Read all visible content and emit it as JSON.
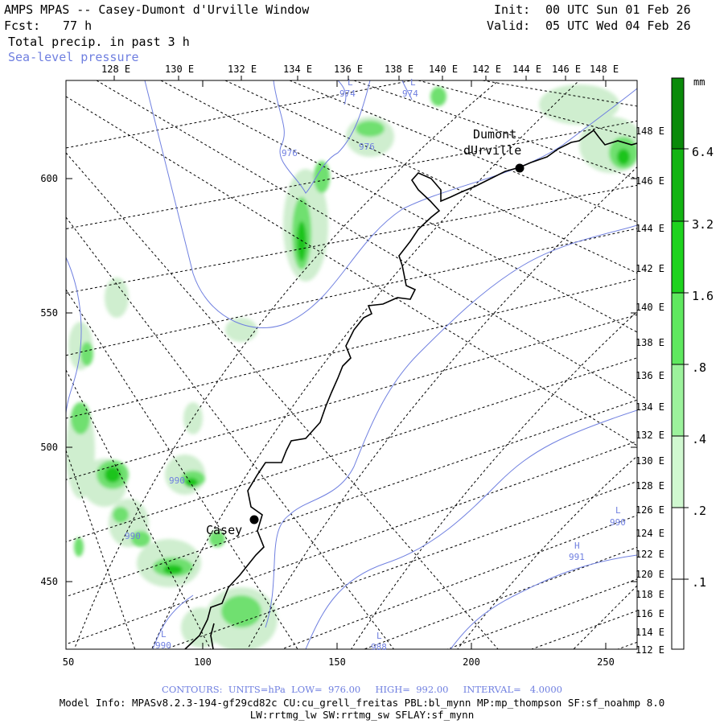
{
  "header": {
    "title": "AMPS MPAS -- Casey-Dumont d'Urville Window",
    "fcst_label": "Fcst:",
    "fcst_value": "77 h",
    "field": "Total precip. in past 3 h",
    "overlay": "Sea-level pressure",
    "init_label": "Init:",
    "init_value": "00 UTC Sun 01 Feb 26",
    "valid_label": "Valid:",
    "valid_value": "05 UTC Wed 04 Feb 26"
  },
  "map": {
    "top_longitudes": [
      "128 E",
      "130 E",
      "132 E",
      "134 E",
      "136 E",
      "138 E",
      "140 E",
      "142 E",
      "144 E",
      "146 E",
      "148 E"
    ],
    "right_longitudes": [
      "148 E",
      "146 E",
      "144 E",
      "142 E",
      "140 E",
      "138 E",
      "136 E",
      "134 E",
      "132 E",
      "130 E",
      "128 E",
      "126 E",
      "124 E",
      "122 E",
      "120 E",
      "118 E",
      "116 E",
      "114 E",
      "112 E"
    ],
    "x_ticks": [
      "50",
      "100",
      "150",
      "200",
      "250"
    ],
    "y_ticks": [
      "600",
      "550",
      "500",
      "450"
    ],
    "stations": [
      {
        "name": "Casey"
      },
      {
        "name_line1": "Dumont",
        "name_line2": "dUrville"
      }
    ],
    "pressure_labels": [
      "974",
      "974",
      "976",
      "976",
      "990",
      "990",
      "988",
      "990",
      "991",
      "990"
    ],
    "pressure_markers": [
      "L",
      "L",
      "H",
      "L",
      "L",
      "L"
    ],
    "colors": {
      "coast": "#000000",
      "isobar": "#7080e0",
      "grid": "#000000"
    }
  },
  "colorbar": {
    "unit": "mm",
    "labels": [
      "6.4",
      "3.2",
      "1.6",
      ".8",
      ".4",
      ".2",
      ".1"
    ],
    "colors": [
      "#0a8a0a",
      "#13b413",
      "#1ed31e",
      "#5fe85f",
      "#9cf29c",
      "#d0f8d0",
      "#ffffff"
    ]
  },
  "footer": {
    "contours": "CONTOURS:  UNITS=hPa  LOW=  976.00     HIGH=  992.00     INTERVAL=   4.0000",
    "model_info": "Model Info: MPASv8.2.3-194-gf29cd82c CU:cu_grell_freitas PBL:bl_mynn MP:mp_thompson SF:sf_noahmp 8.0",
    "physics": "LW:rrtmg_lw SW:rrtmg_sw SFLAY:sf_mynn"
  }
}
